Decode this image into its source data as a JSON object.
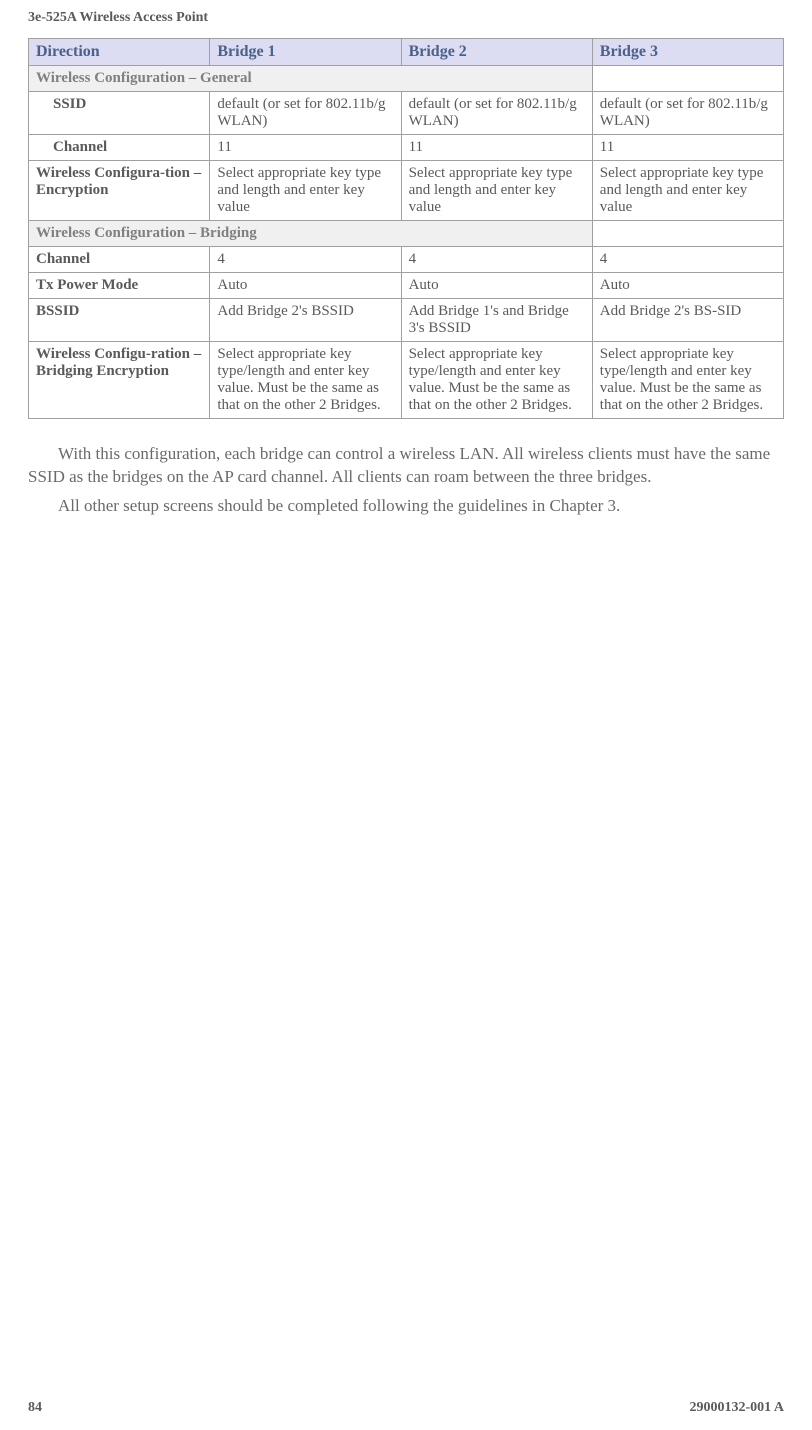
{
  "header": {
    "title": "3e-525A Wireless Access Point"
  },
  "table": {
    "columns": {
      "direction": "Direction",
      "bridge1": "Bridge 1",
      "bridge2": "Bridge 2",
      "bridge3": "Bridge 3"
    },
    "section_general": {
      "label": "Wireless Configuration – General",
      "rows": {
        "ssid": {
          "label": "SSID",
          "bridge1": "default (or set for 802.11b/g WLAN)",
          "bridge2": "default (or set for 802.11b/g WLAN)",
          "bridge3": "default (or set for 802.11b/g WLAN)"
        },
        "channel": {
          "label": "Channel",
          "bridge1": "11",
          "bridge2": "11",
          "bridge3": "11"
        }
      }
    },
    "encryption_row": {
      "label": "Wireless Configura-tion – Encryption",
      "bridge1": "Select appropriate key type and length and enter key value",
      "bridge2": "Select appropriate key type and length and enter key value",
      "bridge3": "Select appropriate key type and length and enter key value"
    },
    "section_bridging": {
      "label": "Wireless Configuration – Bridging",
      "rows": {
        "channel": {
          "label": "Channel",
          "bridge1": "4",
          "bridge2": "4",
          "bridge3": "4"
        },
        "txpower": {
          "label": " Tx Power Mode",
          "bridge1": "Auto",
          "bridge2": "Auto",
          "bridge3": "Auto"
        },
        "bssid": {
          "label": "BSSID",
          "bridge1": "Add Bridge 2's BSSID",
          "bridge2": "Add Bridge 1's and Bridge 3's BSSID",
          "bridge3": "Add Bridge 2's BS-SID"
        }
      }
    },
    "bridging_encryption_row": {
      "label": "Wireless Configu-ration – Bridging Encryption",
      "bridge1": "Select appropriate key type/length and enter key value. Must be the same as that on the other 2 Bridges.",
      "bridge2": "Select appropriate key type/length and enter key value. Must be the same as that on the other 2 Bridges.",
      "bridge3": "Select appropriate key type/length and enter key value. Must be the same as that on the other 2 Bridges."
    }
  },
  "body": {
    "p1": "With this configuration, each bridge can control a wireless LAN. All wireless clients must have the same SSID as the bridges on the AP card channel. All clients can roam between the three bridges.",
    "p2": "All other setup screens should be completed following the guidelines in Chapter 3."
  },
  "footer": {
    "page": "84",
    "docnum": "29000132-001 A"
  },
  "styles": {
    "header_bg": "#dcdcf2",
    "header_text": "#4b6189",
    "subheader_bg": "#f0f0f0",
    "border_color": "#a0a0a0",
    "text_color": "#5a5a5a"
  }
}
